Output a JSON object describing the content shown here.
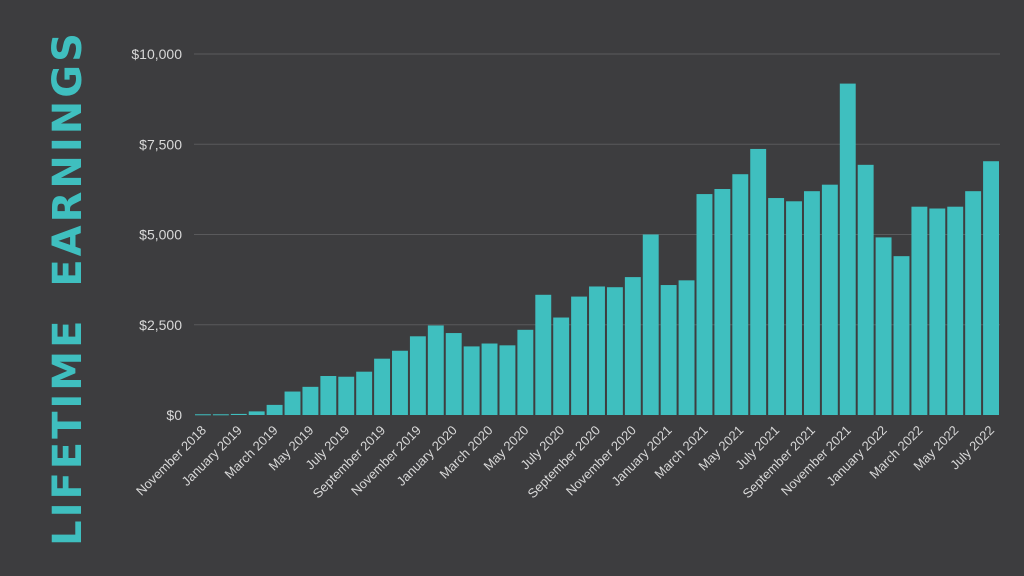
{
  "chart_data": {
    "type": "bar",
    "title": "LIFETIME EARNINGS",
    "xlabel": "",
    "ylabel": "",
    "ylim": [
      0,
      10000
    ],
    "yticks": [
      "$0",
      "$2,500",
      "$5,000",
      "$7,500",
      "$10,000"
    ],
    "ytick_values": [
      0,
      2500,
      5000,
      7500,
      10000
    ],
    "grid": true,
    "legend": "none",
    "bar_color": "#3fbfbf",
    "gridline_color": "#5a5a5c",
    "categories": [
      "November 2018",
      "December 2018",
      "January 2019",
      "February 2019",
      "March 2019",
      "April 2019",
      "May 2019",
      "June 2019",
      "July 2019",
      "August 2019",
      "September 2019",
      "October 2019",
      "November 2019",
      "December 2019",
      "January 2020",
      "February 2020",
      "March 2020",
      "April 2020",
      "May 2020",
      "June 2020",
      "July 2020",
      "August 2020",
      "September 2020",
      "October 2020",
      "November 2020",
      "December 2020",
      "January 2021",
      "February 2021",
      "March 2021",
      "April 2021",
      "May 2021",
      "June 2021",
      "July 2021",
      "August 2021",
      "September 2021",
      "October 2021",
      "November 2021",
      "December 2021",
      "January 2022",
      "February 2022",
      "March 2022",
      "April 2022",
      "May 2022",
      "June 2022",
      "July 2022"
    ],
    "x_tick_labels": [
      "November 2018",
      "",
      "January 2019",
      "",
      "March 2019",
      "",
      "May 2019",
      "",
      "July 2019",
      "",
      "September 2019",
      "",
      "November 2019",
      "",
      "January 2020",
      "",
      "March 2020",
      "",
      "May 2020",
      "",
      "July 2020",
      "",
      "September 2020",
      "",
      "November 2020",
      "",
      "January 2021",
      "",
      "March 2021",
      "",
      "May 2021",
      "",
      "July 2021",
      "",
      "September 2021",
      "",
      "November 2021",
      "",
      "January 2022",
      "",
      "March 2022",
      "",
      "May 2022",
      "",
      "July 2022"
    ],
    "values": [
      20,
      20,
      30,
      100,
      280,
      650,
      780,
      1080,
      1060,
      1200,
      1560,
      1780,
      2180,
      2480,
      2270,
      1900,
      1980,
      1930,
      2360,
      3330,
      2700,
      3280,
      3560,
      3540,
      3820,
      5000,
      3600,
      3730,
      6120,
      6260,
      6670,
      7370,
      6010,
      5920,
      6200,
      6380,
      9180,
      6930,
      4920,
      4400,
      5770,
      5720,
      5770,
      6200,
      7030
    ]
  }
}
